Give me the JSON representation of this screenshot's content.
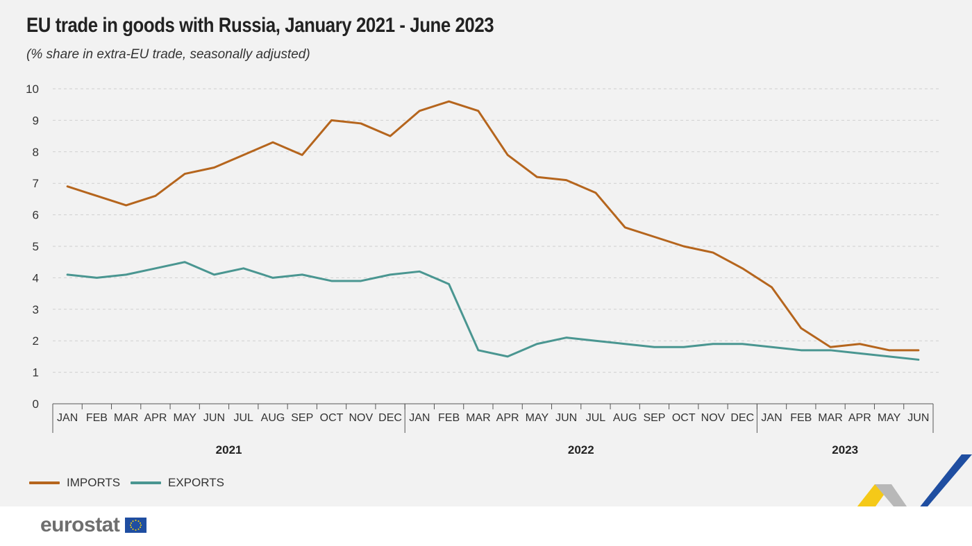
{
  "title": "EU trade in goods with Russia, January 2021 - June 2023",
  "subtitle": "(% share in extra-EU trade, seasonally adjusted)",
  "legend": [
    {
      "label": "IMPORTS",
      "color": "#b5651d"
    },
    {
      "label": "EXPORTS",
      "color": "#4a9691"
    }
  ],
  "logo": {
    "text": "eurostat",
    "flag_icon": "eu-flag-icon"
  },
  "chart_data": {
    "type": "line",
    "title": "EU trade in goods with Russia, January 2021 - June 2023",
    "subtitle": "(% share in extra-EU trade, seasonally adjusted)",
    "x": [
      "JAN",
      "FEB",
      "MAR",
      "APR",
      "MAY",
      "JUN",
      "JUL",
      "AUG",
      "SEP",
      "OCT",
      "NOV",
      "DEC",
      "JAN",
      "FEB",
      "MAR",
      "APR",
      "MAY",
      "JUN",
      "JUL",
      "AUG",
      "SEP",
      "OCT",
      "NOV",
      "DEC",
      "JAN",
      "FEB",
      "MAR",
      "APR",
      "MAY",
      "JUN"
    ],
    "years": [
      {
        "label": "2021",
        "start": 0,
        "count": 12
      },
      {
        "label": "2022",
        "start": 12,
        "count": 12
      },
      {
        "label": "2023",
        "start": 24,
        "count": 6
      }
    ],
    "yticks": [
      "0",
      "1",
      "2",
      "3",
      "4",
      "5",
      "6",
      "7",
      "8",
      "9",
      "10"
    ],
    "ylim": [
      0,
      10
    ],
    "grid": true,
    "legend_position": "bottom-left",
    "series": [
      {
        "name": "IMPORTS",
        "color": "#b5651d",
        "values": [
          6.9,
          6.6,
          6.3,
          6.6,
          7.3,
          7.5,
          7.9,
          8.3,
          7.9,
          9.0,
          8.9,
          8.5,
          9.3,
          9.6,
          9.3,
          7.9,
          7.2,
          7.1,
          6.7,
          5.6,
          5.3,
          5.0,
          4.8,
          4.3,
          3.7,
          2.4,
          1.8,
          1.9,
          1.7,
          1.7
        ]
      },
      {
        "name": "EXPORTS",
        "color": "#4a9691",
        "values": [
          4.1,
          4.0,
          4.1,
          4.3,
          4.5,
          4.1,
          4.3,
          4.0,
          4.1,
          3.9,
          3.9,
          4.1,
          4.2,
          3.8,
          1.7,
          1.5,
          1.9,
          2.1,
          2.0,
          1.9,
          1.8,
          1.8,
          1.9,
          1.9,
          1.8,
          1.7,
          1.7,
          1.6,
          1.5,
          1.4
        ]
      }
    ]
  }
}
